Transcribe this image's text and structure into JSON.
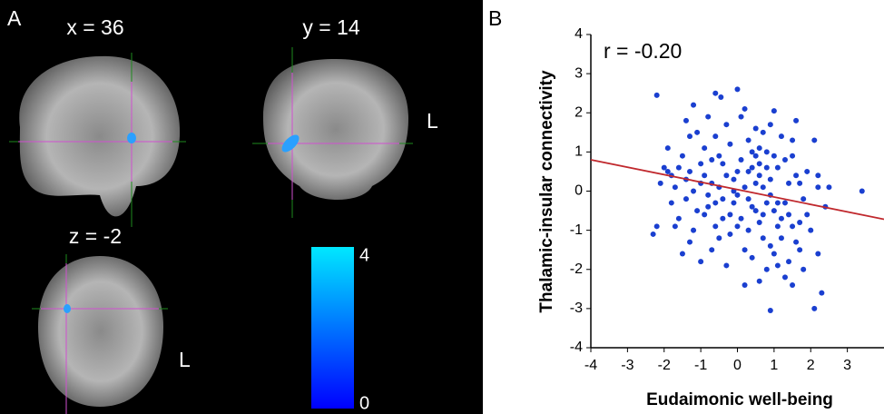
{
  "panel_a": {
    "panel_label": "A",
    "sagittal_label": "x = 36",
    "coronal_label": "y = 14",
    "axial_label": "z = -2",
    "coronal_side": "L",
    "axial_side": "L",
    "colorbar": {
      "lim": [
        0,
        4
      ],
      "ticks": [
        4,
        0
      ],
      "colors": [
        "#00e8ff",
        "#0000ff"
      ]
    }
  },
  "chart_data": {
    "type": "scatter",
    "panel_label": "B",
    "annotation": "r = -0.20",
    "x_label": "Eudaimonic well-being",
    "y_label": "Thalamic-insular connectivity",
    "xlim": [
      -4,
      4
    ],
    "ylim": [
      -4,
      4
    ],
    "xticks": [
      -4,
      -3,
      -2,
      -1,
      0,
      1,
      2,
      3
    ],
    "yticks": [
      -4,
      -3,
      -2,
      -1,
      0,
      1,
      2,
      3,
      4
    ],
    "color": "#1a3fd0",
    "x": [
      -2.2,
      -0.6,
      -0.45,
      0,
      0.9,
      2.1,
      3.4,
      1.0,
      1.6,
      2.1,
      -2.3,
      -2.2,
      2.3,
      -1.3,
      -1.2,
      -0.8,
      -0.3,
      0.5,
      0.7,
      -1.5,
      -1.9,
      -1.7,
      -1.0,
      -0.9,
      -0.5,
      -0.2,
      0.1,
      0.3,
      0.6,
      0.8,
      1.1,
      1.3,
      1.5,
      1.7,
      -1.8,
      -1.6,
      -1.4,
      -1.1,
      -0.7,
      -0.4,
      0.2,
      0.4,
      0.9,
      1.2,
      1.4,
      1.9,
      2.2,
      -2.0,
      -1.3,
      -0.6,
      -0.1,
      0.3,
      0.7,
      1.0,
      1.6,
      -1.7,
      -1.2,
      -0.8,
      -0.3,
      0.0,
      0.5,
      0.8,
      1.3,
      1.8,
      2.4,
      -1.9,
      -1.5,
      -1.0,
      -0.5,
      0.2,
      0.6,
      1.1,
      1.5,
      2.0,
      -1.4,
      -0.9,
      -0.2,
      0.4,
      0.9,
      1.4,
      1.7,
      -1.1,
      -0.4,
      0.1,
      0.6,
      1.2,
      1.9,
      -0.7,
      0.0,
      0.5,
      1.0,
      1.6,
      -1.2,
      -0.3,
      0.3,
      0.8,
      1.5,
      2.2,
      -0.6,
      0.2,
      0.7,
      1.3,
      -0.9,
      -0.1,
      0.4,
      1.1,
      1.8,
      -0.5,
      0.6,
      1.4,
      0.0,
      0.9,
      -1.6,
      -1.0,
      -0.2,
      0.5,
      1.2,
      2.5,
      -2.1,
      -1.4,
      -0.7,
      0.1,
      0.8,
      1.7,
      -1.8,
      -0.8,
      0.3,
      1.0,
      -0.4,
      0.6,
      1.5,
      2.2,
      -1.3,
      -0.1,
      0.7,
      1.1,
      0.4,
      -0.6,
      0.2,
      0.9
    ],
    "values": [
      2.45,
      2.5,
      2.4,
      2.6,
      -3.05,
      -3.0,
      0.0,
      2.05,
      1.8,
      1.3,
      -1.1,
      -0.9,
      -2.6,
      1.4,
      2.2,
      1.9,
      1.7,
      1.6,
      1.5,
      0.9,
      0.5,
      0.1,
      0.7,
      1.1,
      0.9,
      1.2,
      0.8,
      1.3,
      0.4,
      1.0,
      0.6,
      -0.3,
      0.9,
      -0.8,
      -0.3,
      -0.7,
      0.3,
      -0.5,
      0.2,
      -0.2,
      0.1,
      -0.4,
      -0.1,
      -1.2,
      -1.8,
      -0.6,
      0.1,
      0.6,
      -1.3,
      -0.9,
      -0.3,
      -1.0,
      -0.6,
      -1.6,
      -1.3,
      -0.9,
      0.0,
      -0.1,
      0.4,
      -0.1,
      0.2,
      -2.0,
      -2.2,
      -2.0,
      -0.4,
      1.1,
      -1.6,
      -1.8,
      -1.2,
      -1.5,
      -2.3,
      -0.9,
      -2.4,
      -1.0,
      1.8,
      0.4,
      -0.6,
      0.6,
      0.3,
      0.2,
      -1.5,
      1.5,
      0.7,
      1.9,
      1.1,
      1.4,
      0.5,
      -1.5,
      -0.9,
      -0.5,
      0.9,
      0.4,
      -1.0,
      -1.9,
      -0.2,
      0.6,
      -0.9,
      -1.6,
      1.4,
      2.1,
      -1.2,
      0.8,
      -0.6,
      0.3,
      1.0,
      -0.3,
      -0.2,
      0.1,
      -0.8,
      -0.6,
      0.5,
      -1.4,
      0.6,
      0.2,
      -1.1,
      0.9,
      -0.7,
      0.1,
      0.2,
      -0.2,
      0.8,
      -0.7,
      -0.3,
      0.2,
      0.4,
      -0.4,
      0.5,
      -0.5,
      -0.7,
      0.7,
      1.3,
      0.4,
      0.5,
      0.0,
      0.1,
      -1.9,
      -1.7,
      -0.3,
      -2.4,
      1.7
    ],
    "fit_line": {
      "color": "#c0282d",
      "x": [
        -4,
        4
      ],
      "values": [
        0.8,
        -0.72
      ]
    }
  }
}
